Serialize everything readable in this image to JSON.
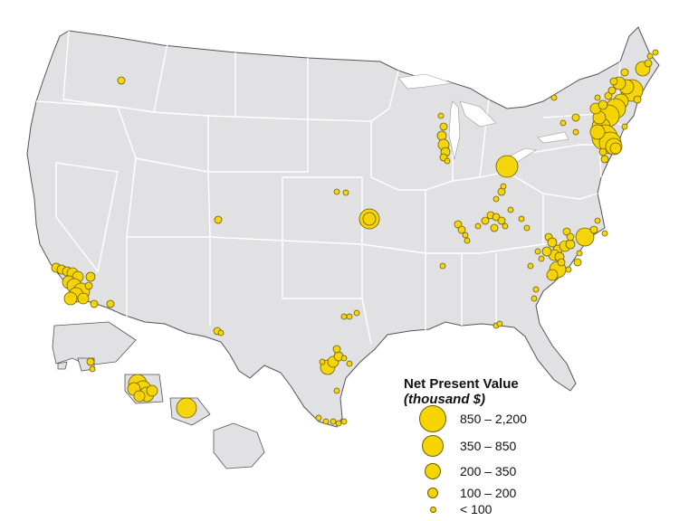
{
  "map": {
    "land_color": "#e1e1e3",
    "border_color": "#ffffff",
    "outline_color": "#555555",
    "marker_color": "#f5d400",
    "marker_stroke": "#6b5d00"
  },
  "legend": {
    "title": "Net Present Value",
    "subtitle": "(thousand $)",
    "classes": [
      {
        "label": "850 – 2,200",
        "size_class": 5
      },
      {
        "label": "350 – 850",
        "size_class": 4
      },
      {
        "label": "200 – 350",
        "size_class": 3
      },
      {
        "label": "100 – 200",
        "size_class": 2
      },
      {
        "label": "< 100",
        "size_class": 1
      }
    ]
  }
}
